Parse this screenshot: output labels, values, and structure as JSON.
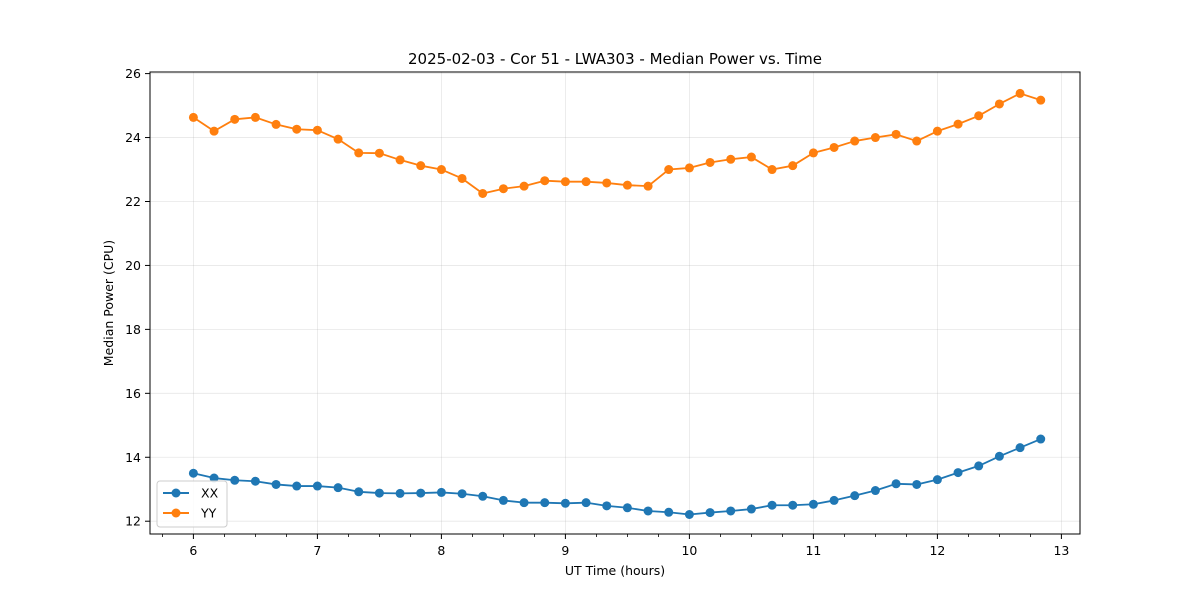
{
  "chart_data": {
    "type": "line",
    "title": "2025-02-03 - Cor 51 - LWA303 - Median Power vs. Time",
    "xlabel": "UT Time (hours)",
    "ylabel": "Median Power (CPU)",
    "xlim": [
      5.65,
      13.15
    ],
    "ylim": [
      11.6,
      26.05
    ],
    "xticks": [
      6,
      7,
      8,
      9,
      10,
      11,
      12,
      13
    ],
    "yticks": [
      12,
      14,
      16,
      18,
      20,
      22,
      24,
      26
    ],
    "grid": true,
    "legend_position": "lower-left",
    "x": [
      6.0,
      6.1667,
      6.3333,
      6.5,
      6.6667,
      6.8333,
      7.0,
      7.1667,
      7.3333,
      7.5,
      7.6667,
      7.8333,
      8.0,
      8.1667,
      8.3333,
      8.5,
      8.6667,
      8.8333,
      9.0,
      9.1667,
      9.3333,
      9.5,
      9.6667,
      9.8333,
      10.0,
      10.1667,
      10.3333,
      10.5,
      10.6667,
      10.8333,
      11.0,
      11.1667,
      11.3333,
      11.5,
      11.6667,
      11.8333,
      12.0,
      12.1667,
      12.3333,
      12.5,
      12.6667,
      12.8333
    ],
    "series": [
      {
        "name": "XX",
        "color": "#1f77b4",
        "values": [
          13.5,
          13.35,
          13.28,
          13.25,
          13.15,
          13.1,
          13.1,
          13.05,
          12.92,
          12.88,
          12.87,
          12.88,
          12.9,
          12.86,
          12.78,
          12.65,
          12.58,
          12.58,
          12.56,
          12.58,
          12.48,
          12.42,
          12.32,
          12.28,
          12.21,
          12.27,
          12.32,
          12.38,
          12.5,
          12.5,
          12.53,
          12.65,
          12.8,
          12.96,
          13.17,
          13.15,
          13.3,
          13.52,
          13.73,
          14.03,
          14.3,
          14.57
        ]
      },
      {
        "name": "YY",
        "color": "#ff7f0e",
        "values": [
          24.63,
          24.2,
          24.57,
          24.63,
          24.41,
          24.26,
          24.23,
          23.95,
          23.52,
          23.51,
          23.3,
          23.12,
          23.0,
          22.72,
          22.25,
          22.4,
          22.48,
          22.65,
          22.62,
          22.62,
          22.58,
          22.51,
          22.48,
          23.0,
          23.05,
          23.22,
          23.32,
          23.39,
          23.0,
          23.12,
          23.52,
          23.69,
          23.89,
          24.0,
          24.1,
          23.89,
          24.2,
          24.42,
          24.68,
          25.05,
          25.38,
          25.17
        ]
      }
    ]
  }
}
